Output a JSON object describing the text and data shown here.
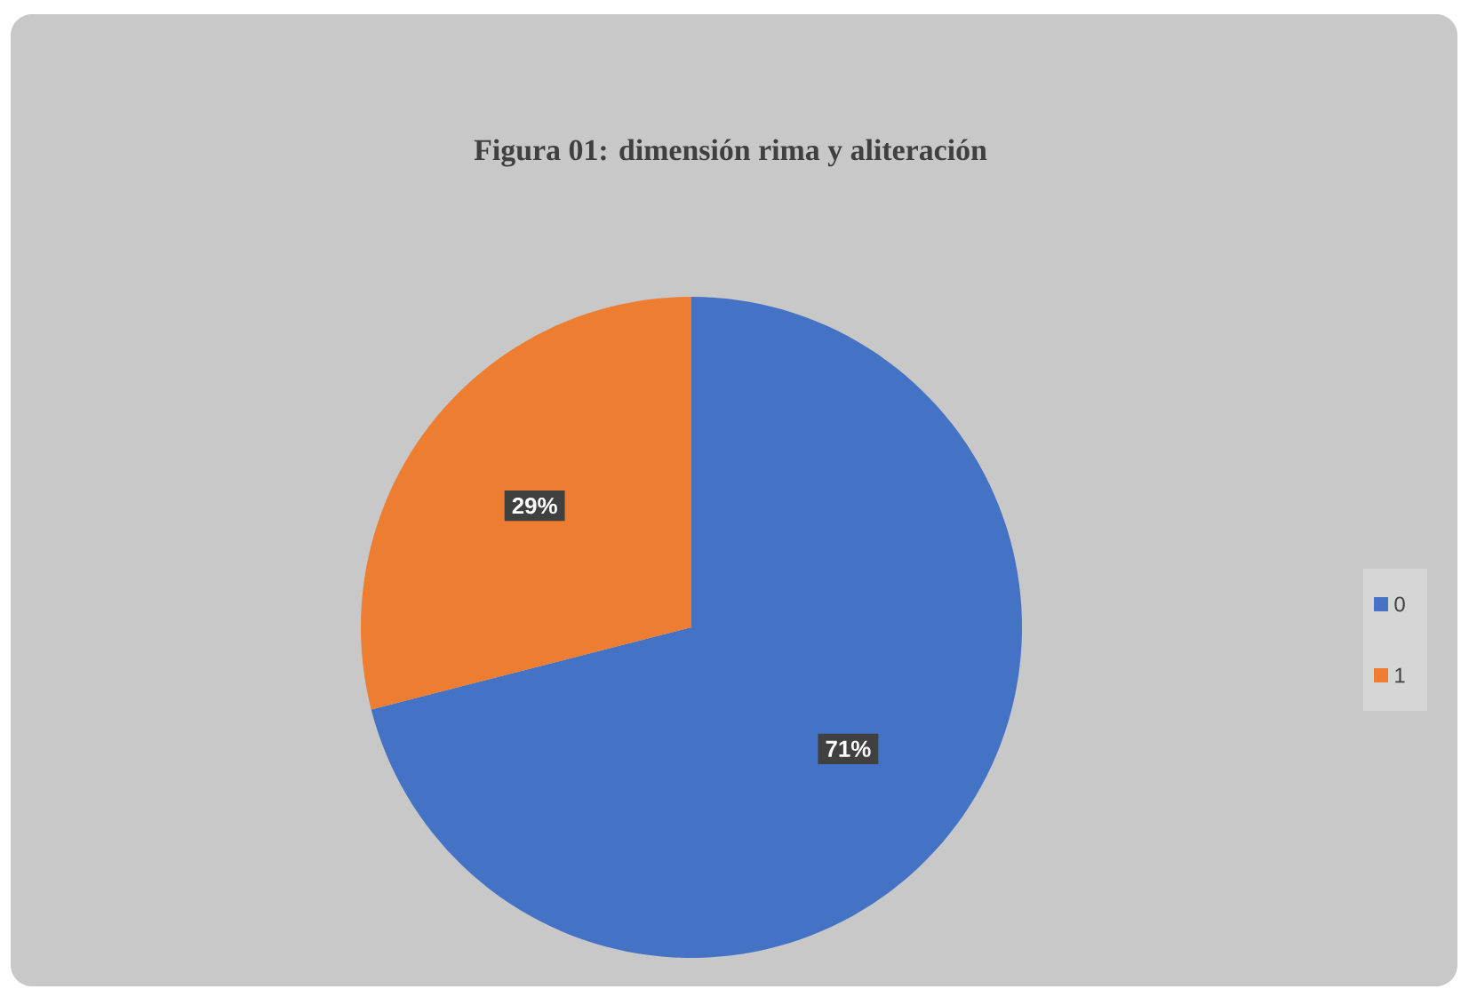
{
  "chart_data": {
    "type": "pie",
    "title": "Figura 01: dimensión rima y aliteración",
    "categories": [
      "0",
      "1"
    ],
    "values": [
      71,
      29
    ],
    "colors": [
      "#4472c4",
      "#ed7d31"
    ],
    "value_labels": [
      "71%",
      "29%"
    ],
    "legend": "right"
  }
}
